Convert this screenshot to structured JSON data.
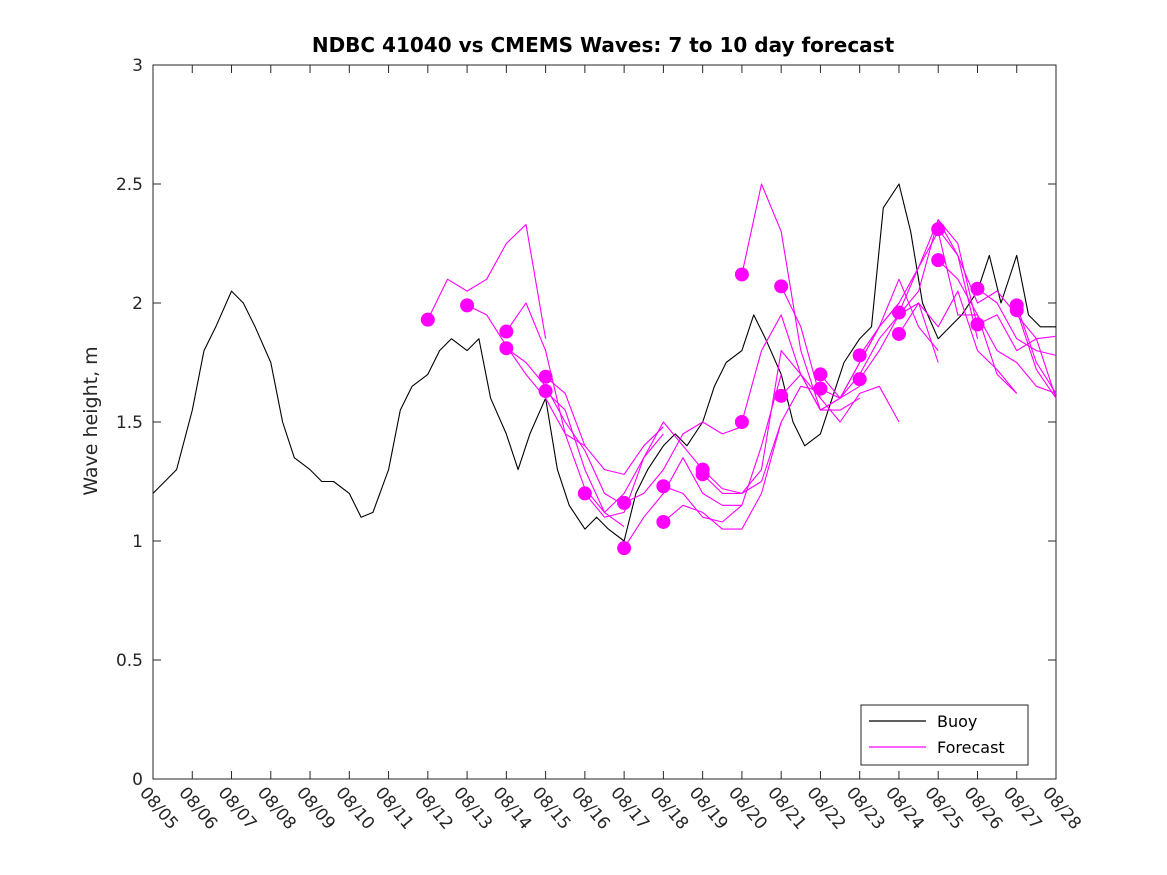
{
  "chart_data": {
    "type": "line",
    "title": "NDBC 41040 vs CMEMS Waves: 7 to 10 day forecast",
    "xlabel": "",
    "ylabel": "Wave height, m",
    "xlim": [
      0,
      23
    ],
    "ylim": [
      0,
      3
    ],
    "grid": false,
    "x_tick_labels": [
      "08/05",
      "08/06",
      "08/07",
      "08/08",
      "08/09",
      "08/10",
      "08/11",
      "08/12",
      "08/13",
      "08/14",
      "08/15",
      "08/16",
      "08/17",
      "08/18",
      "08/19",
      "08/20",
      "08/21",
      "08/22",
      "08/23",
      "08/24",
      "08/25",
      "08/26",
      "08/27",
      "08/28"
    ],
    "y_ticks": [
      0,
      0.5,
      1,
      1.5,
      2,
      2.5,
      3
    ],
    "y_tick_labels": [
      "0",
      "0.5",
      "1",
      "1.5",
      "2",
      "2.5",
      "3"
    ],
    "legend": {
      "location": "bottom-right",
      "entries": [
        {
          "label": "Buoy",
          "color": "#000000"
        },
        {
          "label": "Forecast",
          "color": "#ff00ff"
        }
      ]
    },
    "colors": {
      "buoy": "#000000",
      "forecast": "#ff00ff"
    },
    "series": [
      {
        "name": "Buoy",
        "x": [
          0,
          0.3,
          0.6,
          1.0,
          1.3,
          1.6,
          2.0,
          2.3,
          2.6,
          3.0,
          3.3,
          3.6,
          4.0,
          4.3,
          4.6,
          5.0,
          5.3,
          5.6,
          6.0,
          6.3,
          6.6,
          7.0,
          7.3,
          7.6,
          8.0,
          8.3,
          8.6,
          9.0,
          9.3,
          9.6,
          10.0,
          10.3,
          10.6,
          11.0,
          11.3,
          11.6,
          12.0,
          12.3,
          12.6,
          13.0,
          13.3,
          13.6,
          14.0,
          14.3,
          14.6,
          15.0,
          15.3,
          15.6,
          16.0,
          16.3,
          16.6,
          17.0,
          17.3,
          17.6,
          18.0,
          18.3,
          18.6,
          19.0,
          19.3,
          19.6,
          20.0,
          20.3,
          20.6,
          21.0,
          21.3,
          21.6,
          22.0,
          22.3,
          22.6,
          23.0
        ],
        "y": [
          1.2,
          1.25,
          1.3,
          1.55,
          1.8,
          1.9,
          2.05,
          2.0,
          1.9,
          1.75,
          1.5,
          1.35,
          1.3,
          1.25,
          1.25,
          1.2,
          1.1,
          1.12,
          1.3,
          1.55,
          1.65,
          1.7,
          1.8,
          1.85,
          1.8,
          1.85,
          1.6,
          1.45,
          1.3,
          1.45,
          1.6,
          1.3,
          1.15,
          1.05,
          1.1,
          1.05,
          1.0,
          1.2,
          1.3,
          1.4,
          1.45,
          1.4,
          1.5,
          1.65,
          1.75,
          1.8,
          1.95,
          1.85,
          1.7,
          1.5,
          1.4,
          1.45,
          1.6,
          1.75,
          1.85,
          1.9,
          2.4,
          2.5,
          2.3,
          2.0,
          1.85,
          1.9,
          1.95,
          2.05,
          2.2,
          2.0,
          2.2,
          1.95,
          1.9,
          1.9
        ]
      },
      {
        "name": "Forecast 08/12",
        "x": [
          7.0,
          7.5,
          8.0,
          8.5,
          9.0,
          9.5,
          10.0
        ],
        "y": [
          1.93,
          2.1,
          2.05,
          2.1,
          2.25,
          2.33,
          1.85
        ]
      },
      {
        "name": "Forecast 08/13",
        "x": [
          8.0,
          8.5,
          9.0,
          9.5,
          10.0,
          10.5,
          11.0
        ],
        "y": [
          1.99,
          1.95,
          1.82,
          1.7,
          1.6,
          1.45,
          1.4
        ]
      },
      {
        "name": "Forecast 08/14 a",
        "x": [
          9.0,
          9.5,
          10.0,
          10.5,
          11.0,
          11.5,
          12.0
        ],
        "y": [
          1.88,
          2.0,
          1.8,
          1.45,
          1.22,
          1.12,
          1.06
        ]
      },
      {
        "name": "Forecast 08/14 b",
        "x": [
          9.0,
          9.5,
          10.0,
          10.5,
          11.0,
          11.5,
          12.0
        ],
        "y": [
          1.81,
          1.75,
          1.65,
          1.5,
          1.38,
          1.2,
          1.15
        ]
      },
      {
        "name": "Forecast 08/15 a",
        "x": [
          10.0,
          10.5,
          11.0,
          11.5,
          12.0,
          12.5,
          13.0
        ],
        "y": [
          1.69,
          1.62,
          1.4,
          1.3,
          1.28,
          1.4,
          1.48
        ]
      },
      {
        "name": "Forecast 08/15 b",
        "x": [
          10.0,
          10.5,
          11.0,
          11.5,
          12.0,
          12.5,
          13.0
        ],
        "y": [
          1.63,
          1.55,
          1.3,
          1.12,
          1.2,
          1.35,
          1.45
        ]
      },
      {
        "name": "Forecast 08/16",
        "x": [
          11.0,
          11.5,
          12.0,
          12.5,
          13.0,
          13.5,
          14.0
        ],
        "y": [
          1.2,
          1.1,
          1.12,
          1.35,
          1.5,
          1.4,
          1.3
        ]
      },
      {
        "name": "Forecast 08/17 a",
        "x": [
          12.0,
          12.5,
          13.0,
          13.5,
          14.0,
          14.5,
          15.0
        ],
        "y": [
          1.16,
          1.2,
          1.3,
          1.45,
          1.5,
          1.45,
          1.48
        ]
      },
      {
        "name": "Forecast 08/17 b",
        "x": [
          12.0,
          12.5,
          13.0,
          13.5,
          14.0,
          14.5,
          15.0
        ],
        "y": [
          0.97,
          1.1,
          1.2,
          1.35,
          1.2,
          1.15,
          1.15
        ]
      },
      {
        "name": "Forecast 08/18 a",
        "x": [
          13.0,
          13.5,
          14.0,
          14.5,
          15.0,
          15.5,
          16.0
        ],
        "y": [
          1.23,
          1.2,
          1.1,
          1.08,
          1.15,
          1.4,
          1.7
        ]
      },
      {
        "name": "Forecast 08/18 b",
        "x": [
          13.0,
          13.5,
          14.0,
          14.5,
          15.0,
          15.5,
          16.0
        ],
        "y": [
          1.08,
          1.15,
          1.12,
          1.05,
          1.05,
          1.2,
          1.5
        ]
      },
      {
        "name": "Forecast 08/19 a",
        "x": [
          14.0,
          14.5,
          15.0,
          15.5,
          16.0,
          16.5,
          17.0
        ],
        "y": [
          1.3,
          1.22,
          1.2,
          1.25,
          1.5,
          1.65,
          1.63
        ]
      },
      {
        "name": "Forecast 08/19 b",
        "x": [
          14.0,
          14.5,
          15.0,
          15.5,
          16.0,
          16.5,
          17.0
        ],
        "y": [
          1.28,
          1.2,
          1.2,
          1.3,
          1.8,
          1.7,
          1.6
        ]
      },
      {
        "name": "Forecast 08/20 a",
        "x": [
          15.0,
          15.5,
          16.0,
          16.5,
          17.0,
          17.5,
          18.0
        ],
        "y": [
          2.12,
          2.5,
          2.3,
          1.8,
          1.55,
          1.55,
          1.6
        ]
      },
      {
        "name": "Forecast 08/20 b",
        "x": [
          15.0,
          15.5,
          16.0,
          16.5,
          17.0,
          17.5,
          18.0
        ],
        "y": [
          1.5,
          1.8,
          1.95,
          1.7,
          1.55,
          1.6,
          1.65
        ]
      },
      {
        "name": "Forecast 08/21 a",
        "x": [
          16.0,
          16.5,
          17.0,
          17.5,
          18.0,
          18.5,
          19.0
        ],
        "y": [
          2.07,
          1.9,
          1.6,
          1.5,
          1.62,
          1.65,
          1.5
        ]
      },
      {
        "name": "Forecast 08/21 b",
        "x": [
          16.0,
          16.5,
          17.0,
          17.5,
          18.0,
          18.5,
          19.0
        ],
        "y": [
          1.61,
          1.7,
          1.55,
          1.6,
          1.75,
          1.9,
          2.0
        ]
      },
      {
        "name": "Forecast 08/22 a",
        "x": [
          17.0,
          17.5,
          18.0,
          18.5,
          19.0,
          19.5,
          20.0
        ],
        "y": [
          1.7,
          1.6,
          1.7,
          1.85,
          1.95,
          2.0,
          1.75
        ]
      },
      {
        "name": "Forecast 08/22 b",
        "x": [
          17.0,
          17.5,
          18.0,
          18.5,
          19.0,
          19.5,
          20.0
        ],
        "y": [
          1.64,
          1.6,
          1.75,
          1.9,
          2.1,
          1.9,
          1.8
        ]
      },
      {
        "name": "Forecast 08/23 a",
        "x": [
          18.0,
          18.5,
          19.0,
          19.5,
          20.0,
          20.5,
          21.0
        ],
        "y": [
          1.78,
          1.9,
          2.0,
          2.15,
          2.35,
          2.2,
          1.85
        ]
      },
      {
        "name": "Forecast 08/23 b",
        "x": [
          18.0,
          18.5,
          19.0,
          19.5,
          20.0,
          20.5,
          21.0
        ],
        "y": [
          1.68,
          1.8,
          1.95,
          2.05,
          2.35,
          2.25,
          1.9
        ]
      },
      {
        "name": "Forecast 08/24 a",
        "x": [
          19.0,
          19.5,
          20.0,
          20.5,
          21.0,
          21.5,
          22.0
        ],
        "y": [
          1.96,
          2.15,
          2.3,
          1.95,
          1.95,
          1.7,
          1.62
        ]
      },
      {
        "name": "Forecast 08/24 b",
        "x": [
          19.0,
          19.5,
          20.0,
          20.5,
          21.0,
          21.5,
          22.0
        ],
        "y": [
          1.87,
          2.0,
          1.9,
          2.05,
          1.8,
          1.72,
          1.62
        ]
      },
      {
        "name": "Forecast 08/25 a",
        "x": [
          20.0,
          20.5,
          21.0,
          21.5,
          22.0,
          22.5,
          23.0
        ],
        "y": [
          2.31,
          2.2,
          2.0,
          2.05,
          1.95,
          1.85,
          1.6
        ]
      },
      {
        "name": "Forecast 08/25 b",
        "x": [
          20.0,
          20.5,
          21.0,
          21.5,
          22.0,
          22.5,
          23.0
        ],
        "y": [
          2.18,
          2.1,
          1.95,
          1.8,
          1.75,
          1.65,
          1.62
        ]
      },
      {
        "name": "Forecast 08/26 a",
        "x": [
          21.0,
          21.5,
          22.0,
          22.5,
          23.0
        ],
        "y": [
          2.06,
          2.0,
          1.85,
          1.8,
          1.78
        ]
      },
      {
        "name": "Forecast 08/26 b",
        "x": [
          21.0,
          21.5,
          22.0,
          22.5,
          23.0
        ],
        "y": [
          1.91,
          1.95,
          1.8,
          1.85,
          1.86
        ]
      },
      {
        "name": "Forecast 08/27 a",
        "x": [
          22.0,
          22.5,
          23.0
        ],
        "y": [
          1.99,
          1.75,
          1.62
        ]
      },
      {
        "name": "Forecast 08/27 b",
        "x": [
          22.0,
          22.5,
          23.0
        ],
        "y": [
          1.97,
          1.72,
          1.6
        ]
      }
    ]
  }
}
